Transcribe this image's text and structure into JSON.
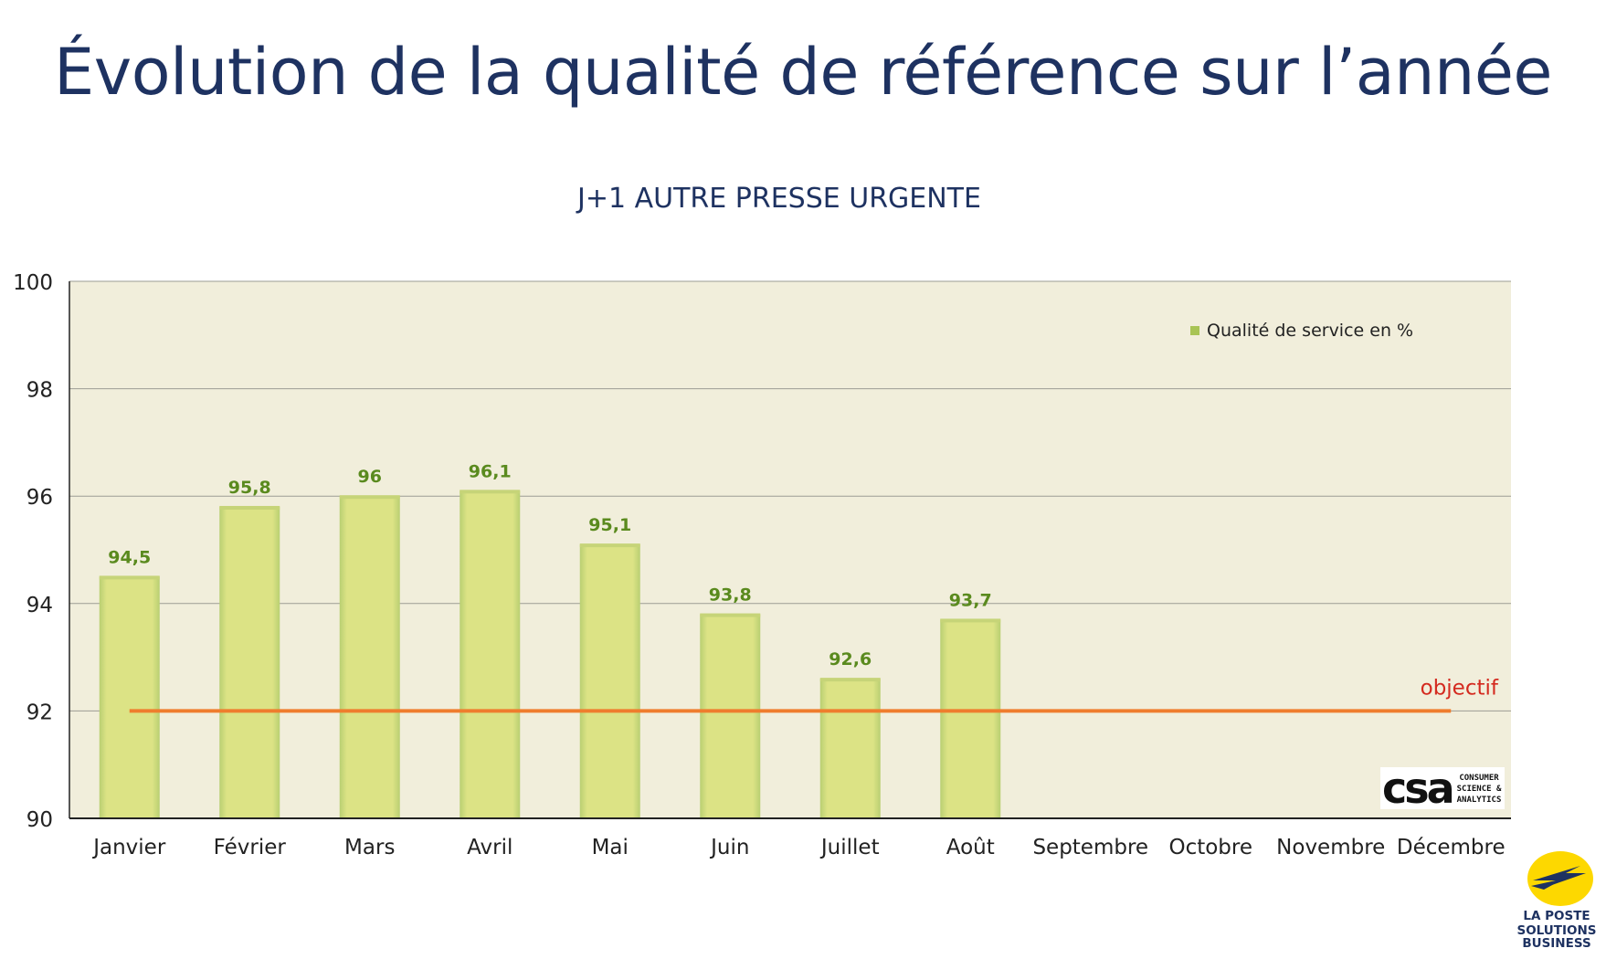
{
  "page": {
    "title": "Évolution de la qualité de référence sur l’année"
  },
  "chart_data": {
    "type": "bar",
    "title": "J+1 AUTRE PRESSE URGENTE",
    "categories": [
      "Janvier",
      "Février",
      "Mars",
      "Avril",
      "Mai",
      "Juin",
      "Juillet",
      "Août",
      "Septembre",
      "Octobre",
      "Novembre",
      "Décembre"
    ],
    "series": [
      {
        "name": "Qualité de service en %",
        "values": [
          94.5,
          95.8,
          96,
          96.1,
          95.1,
          93.8,
          92.6,
          93.7,
          null,
          null,
          null,
          null
        ],
        "labels": [
          "94,5",
          "95,8",
          "96",
          "96,1",
          "95,1",
          "93,8",
          "92,6",
          "93,7",
          "",
          "",
          "",
          ""
        ],
        "color": "#dce385"
      }
    ],
    "target": {
      "label": "objectif",
      "value": 92,
      "color": "#ef7d2d",
      "label_color": "#d42a1f"
    },
    "ylim": [
      90,
      100
    ],
    "yticks": [
      "90",
      "92",
      "94",
      "96",
      "98",
      "100"
    ],
    "ytick_values": [
      90,
      92,
      94,
      96,
      98,
      100
    ],
    "grid": true,
    "legend": "top-right",
    "plot_background": "#f1eedb",
    "label_color": "#5a8a1e"
  },
  "logos": {
    "csa": {
      "mark": "csa",
      "lines": [
        "CONSUMER",
        "SCIENCE &",
        "ANALYTICS"
      ]
    },
    "laposte": {
      "lines": [
        "LA POSTE",
        "SOLUTIONS",
        "BUSINESS"
      ],
      "colors": {
        "yellow": "#fdd800",
        "navy": "#1e3261"
      }
    }
  }
}
